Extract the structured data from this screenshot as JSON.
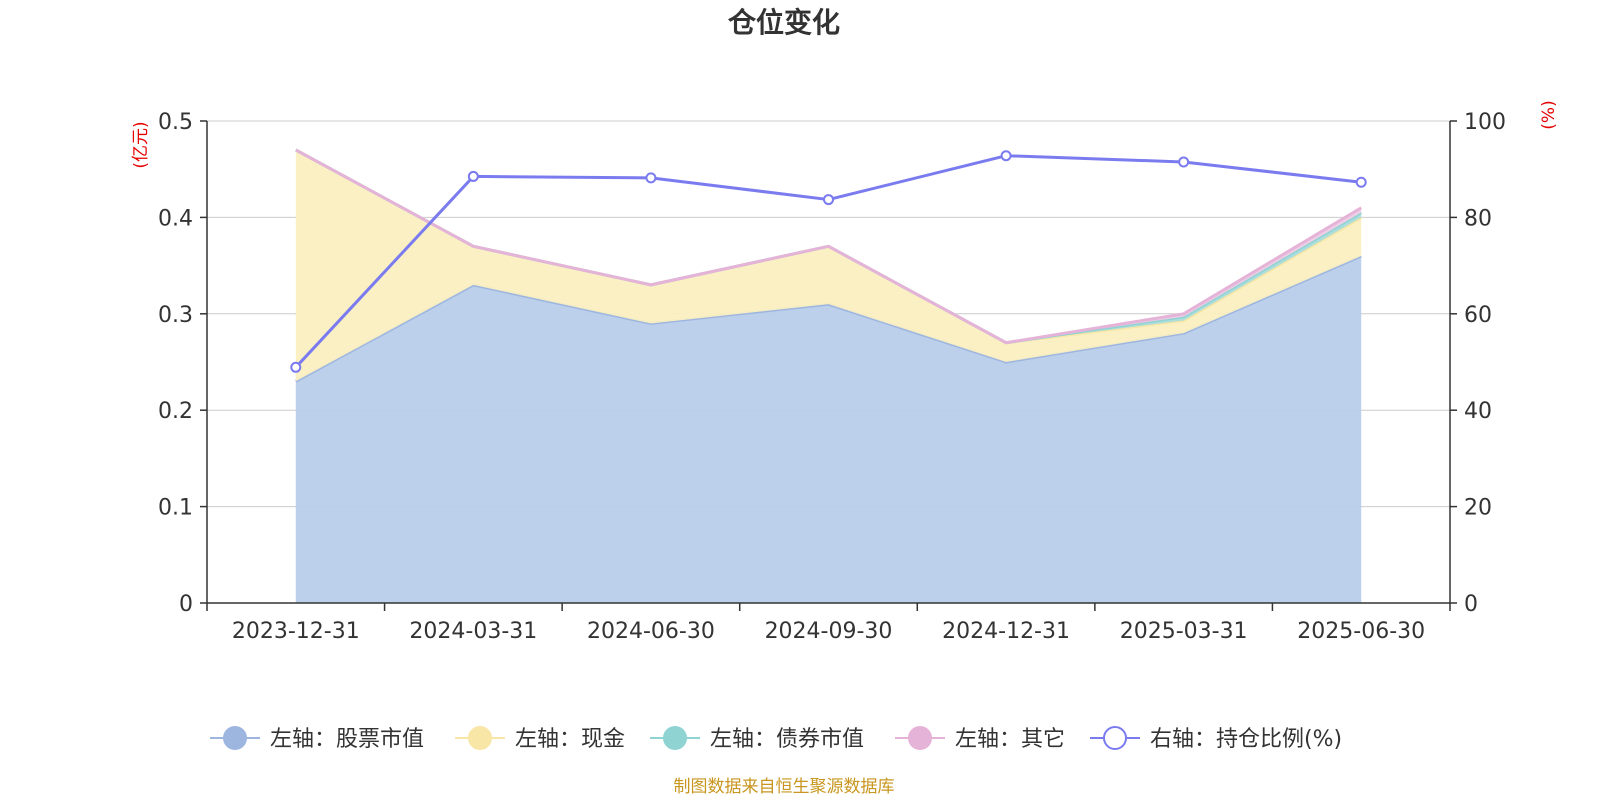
{
  "chart_data": {
    "type": "area",
    "title": "仓位变化",
    "categories": [
      "2023-12-31",
      "2024-03-31",
      "2024-06-30",
      "2024-09-30",
      "2024-12-31",
      "2025-03-31",
      "2025-06-30"
    ],
    "left_axis": {
      "unit": "(亿元)",
      "min": 0,
      "max": 0.5,
      "ticks": [
        "0",
        "0.1",
        "0.2",
        "0.3",
        "0.4",
        "0.5"
      ]
    },
    "right_axis": {
      "unit": "(%)",
      "min": 0,
      "max": 100,
      "ticks": [
        "0",
        "20",
        "40",
        "60",
        "80",
        "100"
      ]
    },
    "stacked_series": [
      {
        "name": "左轴：股票市值",
        "color": "#9db6e0",
        "fill": "#b8cdea",
        "values": [
          0.23,
          0.33,
          0.29,
          0.31,
          0.25,
          0.28,
          0.36
        ]
      },
      {
        "name": "左轴：现金",
        "color": "#f8e6a6",
        "fill": "#faefc1",
        "values": [
          0.24,
          0.04,
          0.04,
          0.06,
          0.02,
          0.013,
          0.04
        ]
      },
      {
        "name": "左轴：债券市值",
        "color": "#8fd3d3",
        "fill": "#a8dcdc",
        "values": [
          0,
          0,
          0,
          0,
          0,
          0.004,
          0.005
        ]
      },
      {
        "name": "左轴：其它",
        "color": "#e5b3d8",
        "fill": "#eecde5",
        "values": [
          0,
          0,
          0,
          0,
          0,
          0.003,
          0.005
        ]
      }
    ],
    "line_series": {
      "name": "右轴：持仓比例(%)",
      "color": "#7b7bf0",
      "values": [
        48.9,
        88.5,
        88.2,
        83.7,
        92.8,
        91.5,
        87.3
      ]
    },
    "grid": true,
    "legend": "bottom-center"
  },
  "footer": {
    "source": "制图数据来自恒生聚源数据库"
  }
}
